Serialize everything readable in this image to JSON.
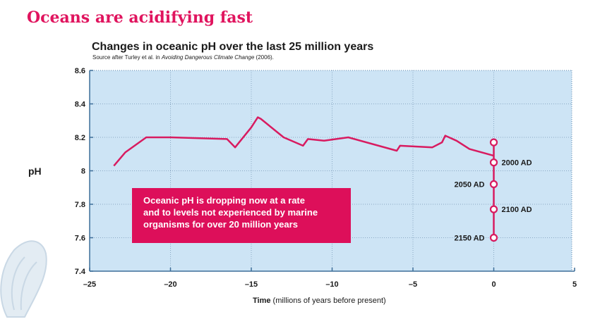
{
  "headline": "Oceans are acidifying fast",
  "callout_lines": [
    "Oceanic pH is dropping now at a rate",
    "and to levels not experienced by marine",
    "organisms for over 20 million years"
  ],
  "colors": {
    "accent": "#e0145e",
    "line": "#d81b60",
    "plot_background": "#cde4f5",
    "callout_background": "#dd0f5a"
  },
  "chart_data": {
    "type": "line",
    "title": "Changes in oceanic pH over the last 25 million years",
    "subtitle_parts": {
      "before": "Source after Turley et al. in ",
      "italic": "Avoiding Dangerous Climate Change",
      "after": " (2006)."
    },
    "xlabel_bold": "Time",
    "xlabel_rest": " (millions of years before present)",
    "ylabel": "pH",
    "xlim": [
      -25,
      5
    ],
    "ylim": [
      7.4,
      8.6
    ],
    "x_ticks": [
      -25,
      -20,
      -15,
      -10,
      -5,
      0,
      5
    ],
    "x_tick_labels": [
      "–25",
      "–20",
      "–15",
      "–10",
      "–5",
      "0",
      "5"
    ],
    "y_ticks": [
      7.4,
      7.6,
      7.8,
      8,
      8.2,
      8.4,
      8.6
    ],
    "y_tick_labels": [
      "7.4",
      "7.6",
      "7.8",
      "8",
      "8.2",
      "8.4",
      "8.6"
    ],
    "grid": true,
    "series": [
      {
        "x": [
          -23.5,
          -22.8,
          -21.5,
          -20,
          -16.5,
          -16,
          -15,
          -14.6,
          -14.4,
          -13.0,
          -11.8,
          -11.5,
          -10.5,
          -9.0,
          -6.0,
          -5.8,
          -3.8,
          -3.2,
          -3.0,
          -2.3,
          -1.5,
          0
        ],
        "y": [
          8.03,
          8.11,
          8.2,
          8.2,
          8.19,
          8.14,
          8.26,
          8.32,
          8.31,
          8.2,
          8.15,
          8.19,
          8.18,
          8.2,
          8.12,
          8.15,
          8.14,
          8.17,
          8.21,
          8.18,
          8.13,
          8.09
        ]
      }
    ],
    "projections": {
      "x": 0,
      "points": [
        {
          "y": 8.17,
          "label": ""
        },
        {
          "y": 8.05,
          "label": "2000 AD"
        },
        {
          "y": 7.92,
          "label": "2050 AD"
        },
        {
          "y": 7.77,
          "label": "2100 AD"
        },
        {
          "y": 7.6,
          "label": "2150 AD"
        }
      ],
      "label_sides": [
        "",
        "right",
        "left",
        "right",
        "left"
      ]
    }
  }
}
